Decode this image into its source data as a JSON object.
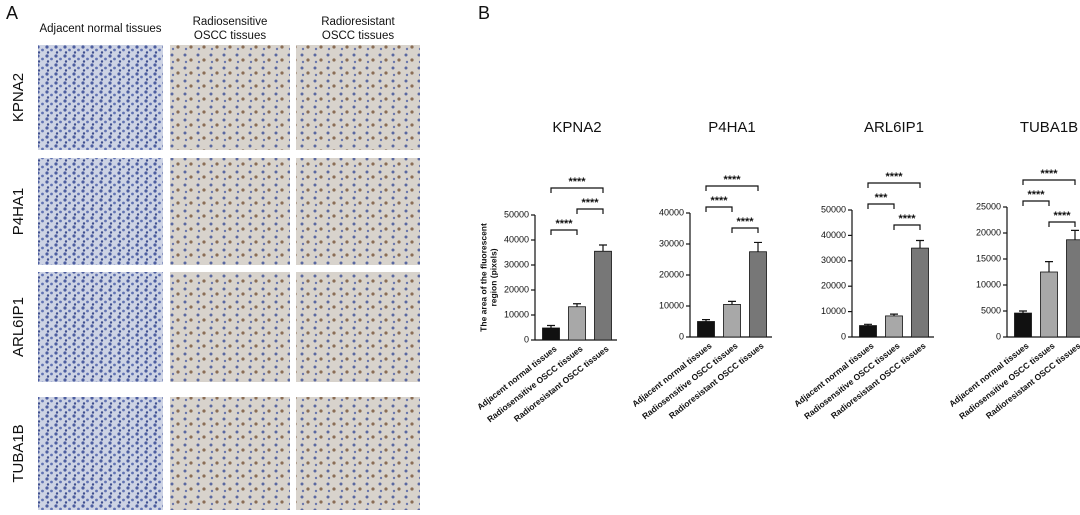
{
  "panel_a": {
    "label": "A",
    "columns": [
      [
        "Adjacent normal tissues"
      ],
      [
        "Radiosensitive",
        "OSCC tissues"
      ],
      [
        "Radioresistant",
        "OSCC tissues"
      ]
    ],
    "rows": [
      "KPNA2",
      "P4HA1",
      "ARL6IP1",
      "TUBA1B"
    ]
  },
  "panel_b": {
    "label": "B"
  },
  "chart_data": [
    {
      "type": "bar",
      "title": "KPNA2",
      "y_label": [
        "The area of the fluorescent",
        "region (pixels)"
      ],
      "categories": [
        "Adjacent normal tissues",
        "Radiosensitive OSCC tissues",
        "Radioresistant OSCC tissues"
      ],
      "values": [
        4800,
        13300,
        35500
      ],
      "errors": [
        1000,
        1200,
        2500
      ],
      "colors": [
        "#111111",
        "#a8a8a8",
        "#777777"
      ],
      "ylim": [
        0,
        50000
      ],
      "yticks": [
        0,
        10000,
        20000,
        30000,
        40000,
        50000
      ],
      "comparisons": [
        {
          "groups": [
            0,
            1
          ],
          "label": "****"
        },
        {
          "groups": [
            1,
            2
          ],
          "label": "****"
        },
        {
          "groups": [
            0,
            2
          ],
          "label": "****"
        }
      ]
    },
    {
      "type": "bar",
      "title": "P4HA1",
      "categories": [
        "Adjacent normal tissues",
        "Radiosensitive OSCC tissues",
        "Radioresistant OSCC tissues"
      ],
      "values": [
        5000,
        10500,
        27500
      ],
      "errors": [
        600,
        1000,
        3000
      ],
      "colors": [
        "#111111",
        "#a8a8a8",
        "#777777"
      ],
      "ylim": [
        0,
        40000
      ],
      "yticks": [
        0,
        10000,
        20000,
        30000,
        40000
      ],
      "comparisons": [
        {
          "groups": [
            1,
            2
          ],
          "label": "****"
        },
        {
          "groups": [
            0,
            1
          ],
          "label": "****"
        },
        {
          "groups": [
            0,
            2
          ],
          "label": "****"
        }
      ]
    },
    {
      "type": "bar",
      "title": "ARL6IP1",
      "categories": [
        "Adjacent normal tissues",
        "Radiosensitive OSCC tissues",
        "Radioresistant OSCC tissues"
      ],
      "values": [
        4500,
        8300,
        35000
      ],
      "errors": [
        500,
        700,
        3000
      ],
      "colors": [
        "#111111",
        "#a8a8a8",
        "#777777"
      ],
      "ylim": [
        0,
        50000
      ],
      "yticks": [
        0,
        10000,
        20000,
        30000,
        40000,
        50000
      ],
      "comparisons": [
        {
          "groups": [
            1,
            2
          ],
          "label": "****"
        },
        {
          "groups": [
            0,
            1
          ],
          "label": "***"
        },
        {
          "groups": [
            0,
            2
          ],
          "label": "****"
        }
      ]
    },
    {
      "type": "bar",
      "title": "TUBA1B",
      "categories": [
        "Adjacent normal tissues",
        "Radiosensitive OSCC tissues",
        "Radioresistant OSCC tissues"
      ],
      "values": [
        4600,
        12500,
        18700
      ],
      "errors": [
        400,
        2000,
        1800
      ],
      "colors": [
        "#111111",
        "#a8a8a8",
        "#777777"
      ],
      "ylim": [
        0,
        25000
      ],
      "yticks": [
        0,
        5000,
        10000,
        15000,
        20000,
        25000
      ],
      "comparisons": [
        {
          "groups": [
            1,
            2
          ],
          "label": "****"
        },
        {
          "groups": [
            0,
            1
          ],
          "label": "****"
        },
        {
          "groups": [
            0,
            2
          ],
          "label": "****"
        }
      ]
    }
  ]
}
